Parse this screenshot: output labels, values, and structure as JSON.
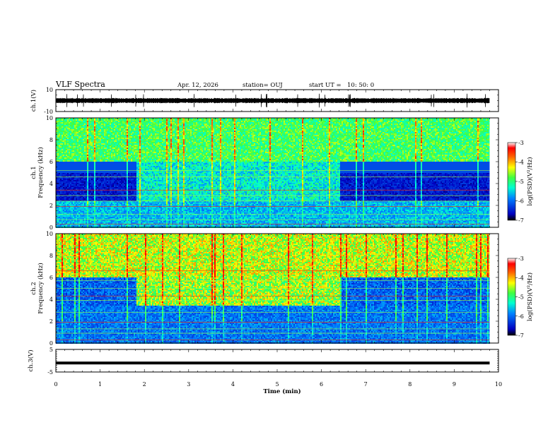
{
  "header": {
    "title": "VLF Spectra",
    "date": "Apr. 12, 2026",
    "station": "station= OUJ",
    "start_label": "start  UT =",
    "start_time": "10: 50: 0"
  },
  "colorbar": {
    "label": "log(PSD)(V²/Hz)",
    "ticks": [
      "-3",
      "-4",
      "-5",
      "-6",
      "-7"
    ],
    "min": -7,
    "max": -3
  },
  "chart_data": [
    {
      "type": "line",
      "panel": "waveform_ch1",
      "ylabel": "ch.1(V)",
      "ylim": [
        -10,
        10
      ],
      "yticks": [
        "10",
        "-10"
      ],
      "xlim": [
        0,
        10
      ],
      "x": [
        0,
        1,
        2,
        3,
        4,
        5,
        6,
        7,
        8,
        9,
        9.8
      ],
      "y": [
        0,
        0,
        0,
        0,
        0,
        0,
        0,
        0,
        0,
        0,
        0
      ]
    },
    {
      "type": "heatmap",
      "panel": "spectrogram_ch1",
      "ylabel_channel": "ch.1",
      "ylabel": "Frequency (kHz)",
      "ylim": [
        0,
        10
      ],
      "yticks": [
        "10",
        "8",
        "6",
        "4",
        "2",
        "0"
      ],
      "xlim": [
        0,
        10
      ],
      "data_end_min": 9.8,
      "time_segments_min": [
        [
          0,
          1.8
        ],
        [
          1.8,
          6.4
        ],
        [
          6.4,
          9.8
        ]
      ],
      "description_levels": "quiet band 2.5-5.5 kHz before 1.8 min and after 6.4 min; enhanced emissions 1.8-6.4 min"
    },
    {
      "type": "heatmap",
      "panel": "spectrogram_ch2",
      "ylabel_channel": "ch.2",
      "ylabel": "Frequency (kHz)",
      "ylim": [
        0,
        10
      ],
      "yticks": [
        "10",
        "8",
        "6",
        "4",
        "2",
        "0"
      ],
      "xlim": [
        0,
        10
      ],
      "data_end_min": 9.8,
      "time_segments_min": [
        [
          0,
          1.8
        ],
        [
          1.8,
          6.4
        ],
        [
          6.4,
          9.8
        ]
      ]
    },
    {
      "type": "line",
      "panel": "waveform_ch3",
      "ylabel": "ch.3(V)",
      "ylim": [
        -5,
        5
      ],
      "yticks": [
        "5",
        "-5"
      ],
      "xlim": [
        0,
        10
      ],
      "x": [
        0,
        9.8
      ],
      "y": [
        -1.0,
        -1.0
      ]
    }
  ],
  "xaxis": {
    "label": "Time  (min)",
    "ticks": [
      "0",
      "1",
      "2",
      "3",
      "4",
      "5",
      "6",
      "7",
      "8",
      "9",
      "10"
    ]
  },
  "colors": {
    "background": "#ffffff",
    "axes": "#000000",
    "cmap": [
      "#00007f",
      "#0000ff",
      "#00bfff",
      "#00ff7f",
      "#bfff00",
      "#ffff00",
      "#ff7f00",
      "#ff0000",
      "#ffffff"
    ]
  }
}
